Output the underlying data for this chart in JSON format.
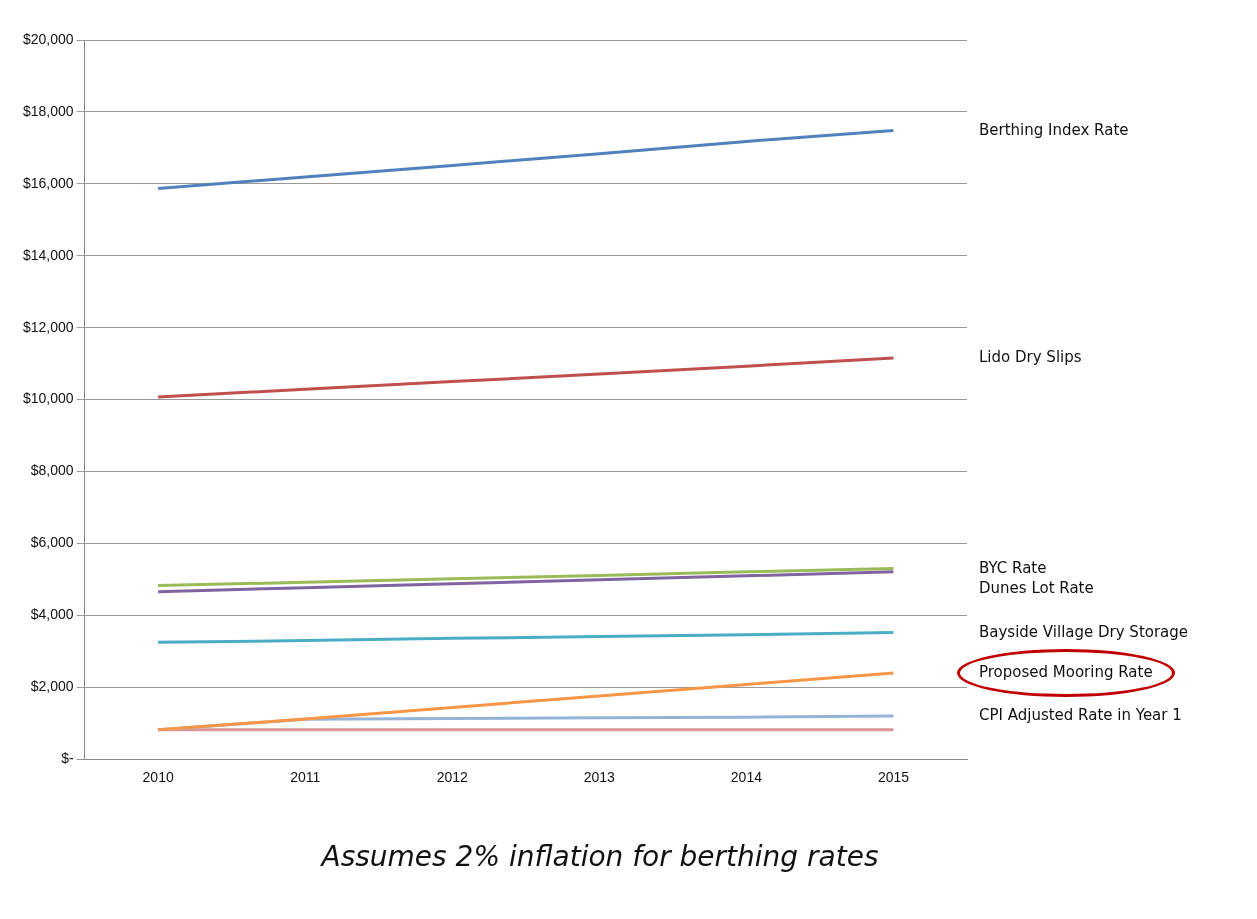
{
  "chart_data": {
    "type": "line",
    "categories": [
      "2010",
      "2011",
      "2012",
      "2013",
      "2014",
      "2015"
    ],
    "series": [
      {
        "name": "Berthing Index Rate",
        "color": "#4f81bd",
        "values": [
          15870,
          16190,
          16510,
          16840,
          17180,
          17480
        ]
      },
      {
        "name": "Lido Dry Slips",
        "color": "#c0504d",
        "values": [
          10070,
          10290,
          10500,
          10710,
          10930,
          11160
        ]
      },
      {
        "name": "BYC Rate",
        "color": "#9bbb59",
        "values": [
          4830,
          4920,
          5020,
          5110,
          5210,
          5300
        ]
      },
      {
        "name": "Dunes Lot Rate",
        "color": "#8064a2",
        "values": [
          4660,
          4770,
          4880,
          4990,
          5100,
          5210
        ]
      },
      {
        "name": "Bayside Village Dry Storage",
        "color": "#4bacc6",
        "values": [
          3250,
          3300,
          3360,
          3410,
          3460,
          3520
        ]
      },
      {
        "name": "Proposed Mooring Rate",
        "color": "#f79646",
        "values": [
          820,
          1120,
          1440,
          1760,
          2080,
          2400
        ]
      },
      {
        "name": "CPI Adjusted Rate in Year 1",
        "color": "#95b3d7",
        "values": [
          820,
          1110,
          1130,
          1150,
          1170,
          1200
        ]
      },
      {
        "color": "#d99694",
        "values": [
          820,
          820,
          820,
          820,
          820,
          820
        ]
      }
    ],
    "ylim": [
      0,
      20000
    ],
    "yticks": [
      {
        "value": 0,
        "label": "$-"
      },
      {
        "value": 2000,
        "label": "$2,000"
      },
      {
        "value": 4000,
        "label": "$4,000"
      },
      {
        "value": 6000,
        "label": "$6,000"
      },
      {
        "value": 8000,
        "label": "$8,000"
      },
      {
        "value": 10000,
        "label": "$10,000"
      },
      {
        "value": 12000,
        "label": "$12,000"
      },
      {
        "value": 14000,
        "label": "$14,000"
      },
      {
        "value": 16000,
        "label": "$16,000"
      },
      {
        "value": 18000,
        "label": "$18,000"
      },
      {
        "value": 20000,
        "label": "$20,000"
      }
    ],
    "grid": "y",
    "legend": false,
    "marker": "none",
    "line_style": "solid",
    "annotations": [
      "Assumes 2% inflation for berthing rates"
    ]
  }
}
